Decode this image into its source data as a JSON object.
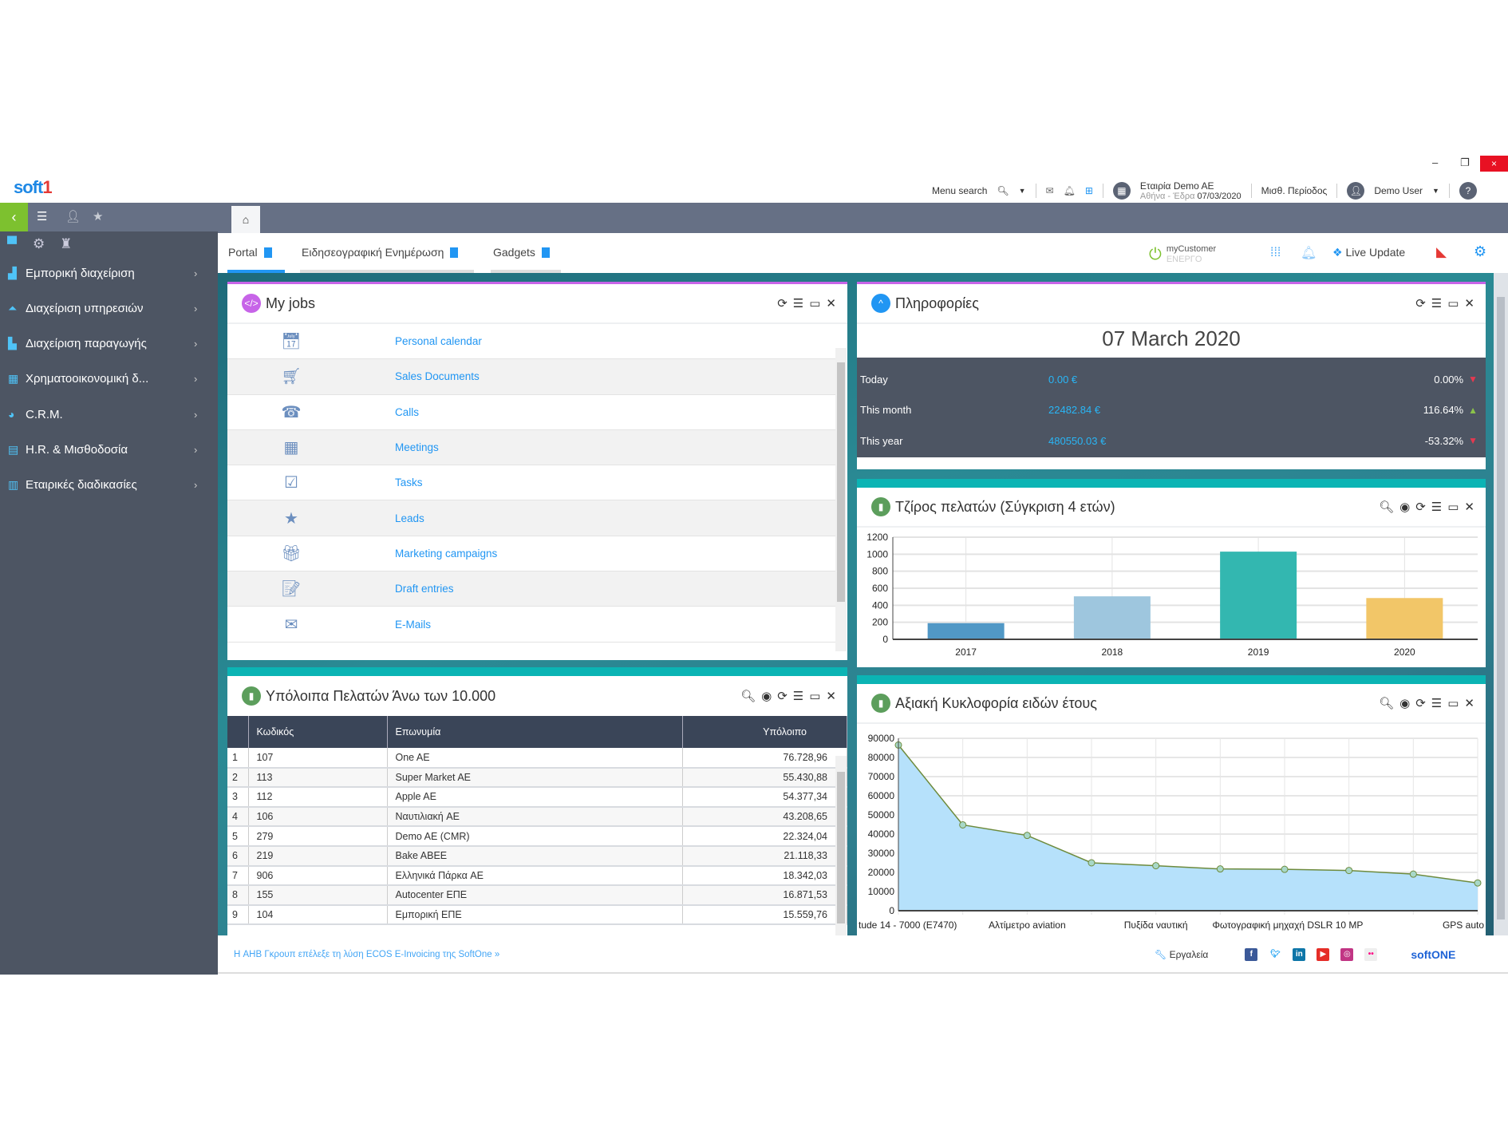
{
  "window": {
    "minimize": "–",
    "restore": "❐",
    "close": "×"
  },
  "header": {
    "logo_main": "soft",
    "logo_accent": "1",
    "menu_search": "Menu search",
    "company": "Εταιρία Demo AE",
    "branch": "Αθήνα - Έδρα",
    "date": "07/03/2020",
    "period": "Μισθ. Περίοδος",
    "user": "Demo User",
    "help": "?"
  },
  "sidebar": {
    "items": [
      {
        "label": "Εμπορική διαχείριση",
        "icon": "warehouse-icon"
      },
      {
        "label": "Διαχείριση υπηρεσιών",
        "icon": "service-bell-icon"
      },
      {
        "label": "Διαχείριση παραγωγής",
        "icon": "factory-icon"
      },
      {
        "label": "Χρηματοοικονομική δ...",
        "icon": "calculator-icon"
      },
      {
        "label": "C.R.M.",
        "icon": "pie-icon"
      },
      {
        "label": "H.R. & Μισθοδοσία",
        "icon": "id-card-icon"
      },
      {
        "label": "Εταιρικές διαδικασίες",
        "icon": "building-icon"
      }
    ]
  },
  "tabs": [
    {
      "label": "Portal"
    },
    {
      "label": "Ειδησεογραφική Ενημέρωση"
    },
    {
      "label": "Gadgets"
    }
  ],
  "tabbar_right": {
    "mycustomer": "myCustomer",
    "mycustomer_status": "ΕΝΕΡΓΟ",
    "live_update": "Live Update"
  },
  "my_jobs": {
    "title": "My jobs",
    "items": [
      {
        "label": "Personal calendar",
        "icon": "calendar-icon"
      },
      {
        "label": "Sales Documents",
        "icon": "cart-icon"
      },
      {
        "label": "Calls",
        "icon": "phone-icon"
      },
      {
        "label": "Meetings",
        "icon": "presentation-icon"
      },
      {
        "label": "Tasks",
        "icon": "task-check-icon"
      },
      {
        "label": "Leads",
        "icon": "star-icon"
      },
      {
        "label": "Marketing campaigns",
        "icon": "gift-icon"
      },
      {
        "label": "Draft entries",
        "icon": "draft-icon"
      },
      {
        "label": "E-Mails",
        "icon": "mail-icon"
      }
    ]
  },
  "info": {
    "title": "Πληροφορίες",
    "date": "07 March 2020",
    "rows": [
      {
        "label": "Today",
        "value": "0.00 €",
        "pct": "0.00%",
        "trend": "down",
        "color": "#e53950"
      },
      {
        "label": "This month",
        "value": "22482.84 €",
        "pct": "116.64%",
        "trend": "up",
        "color": "#8bc34a"
      },
      {
        "label": "This year",
        "value": "480550.03 €",
        "pct": "-53.32%",
        "trend": "down",
        "color": "#e53950"
      }
    ]
  },
  "balances": {
    "title": "Υπόλοιπα Πελατών Άνω των 10.000",
    "columns": [
      "Κωδικός",
      "Επωνυμία",
      "Υπόλοιπο"
    ],
    "rows": [
      [
        "1",
        "107",
        "One AE",
        "76.728,96"
      ],
      [
        "2",
        "113",
        "Super Market AE",
        "55.430,88"
      ],
      [
        "3",
        "112",
        "Apple AE",
        "54.377,34"
      ],
      [
        "4",
        "106",
        "Ναυτιλιακή AE",
        "43.208,65"
      ],
      [
        "5",
        "279",
        "Demo AE (CMR)",
        "22.324,04"
      ],
      [
        "6",
        "219",
        "Bake ABEE",
        "21.118,33"
      ],
      [
        "7",
        "906",
        "Ελληνικά Πάρκα AE",
        "18.342,03"
      ],
      [
        "8",
        "155",
        "Autocenter ΕΠΕ",
        "16.871,53"
      ],
      [
        "9",
        "104",
        "Εμπορική ΕΠΕ",
        "15.559,76"
      ]
    ]
  },
  "chart_data": [
    {
      "type": "bar",
      "title": "Τζίρος πελατών (Σύγκριση 4 ετών)",
      "categories": [
        "2017",
        "2018",
        "2019",
        "2020"
      ],
      "values": [
        190,
        505,
        1030,
        485
      ],
      "colors": [
        "#5198c6",
        "#9ec6de",
        "#33b7b0",
        "#f2c668"
      ],
      "ylim": [
        0,
        1200
      ],
      "yticks": [
        0,
        200,
        400,
        600,
        800,
        1000,
        1200
      ],
      "grid": true
    },
    {
      "type": "area",
      "title": "Αξιακή Κυκλοφορία ειδών έτους",
      "x_labels": [
        "tude 14 - 7000 (E7470)",
        "",
        "Αλτίμετρο aviation",
        "",
        "Πυξίδα ναυτική",
        "Φωτογραφική μηχαχή DSLR 10 MP",
        "",
        "",
        "",
        "GPS auto"
      ],
      "values": [
        86500,
        44800,
        39300,
        25000,
        23500,
        21800,
        21600,
        21000,
        19100,
        14500
      ],
      "ylim": [
        0,
        90000
      ],
      "yticks": [
        0,
        10000,
        20000,
        30000,
        40000,
        50000,
        60000,
        70000,
        80000,
        90000
      ],
      "grid": true,
      "fill": "#b6e1fb",
      "line": "#6e8b3d"
    }
  ],
  "footer": {
    "news": "Η AHB Γκρουπ επέλεξε τη λύση ECOS E-Invoicing της SoftOne »",
    "tools": "Εργαλεία",
    "brand": "softONE"
  }
}
